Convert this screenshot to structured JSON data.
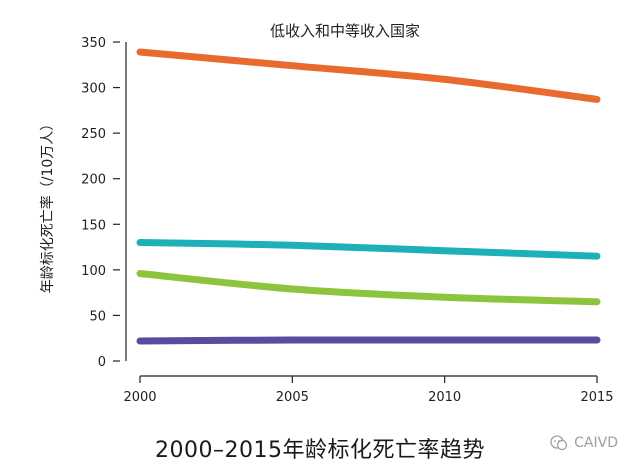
{
  "chart_data": {
    "type": "line",
    "title": "低收入和中等收入国家",
    "ylabel": "年龄标化死亡率（/10万人）",
    "xlabel": "",
    "x": [
      2000,
      2005,
      2010,
      2015
    ],
    "xticks": [
      "2000",
      "2005",
      "2010",
      "2015"
    ],
    "yticks": [
      "0",
      "50",
      "100",
      "150",
      "200",
      "250",
      "300",
      "350"
    ],
    "ylim": [
      0,
      350
    ],
    "xlim": [
      2000,
      2015
    ],
    "grid": false,
    "series": [
      {
        "color": "#e86a2e",
        "values": [
          339,
          324,
          309,
          287
        ]
      },
      {
        "color": "#1cb0b8",
        "values": [
          130,
          127,
          121,
          115
        ]
      },
      {
        "color": "#8cc43e",
        "values": [
          96,
          79,
          70,
          65
        ]
      },
      {
        "color": "#5b4b9e",
        "values": [
          22,
          23,
          23,
          23
        ]
      }
    ]
  },
  "caption": "2000–2015年龄标化死亡率趋势",
  "watermark": "CAIVD"
}
